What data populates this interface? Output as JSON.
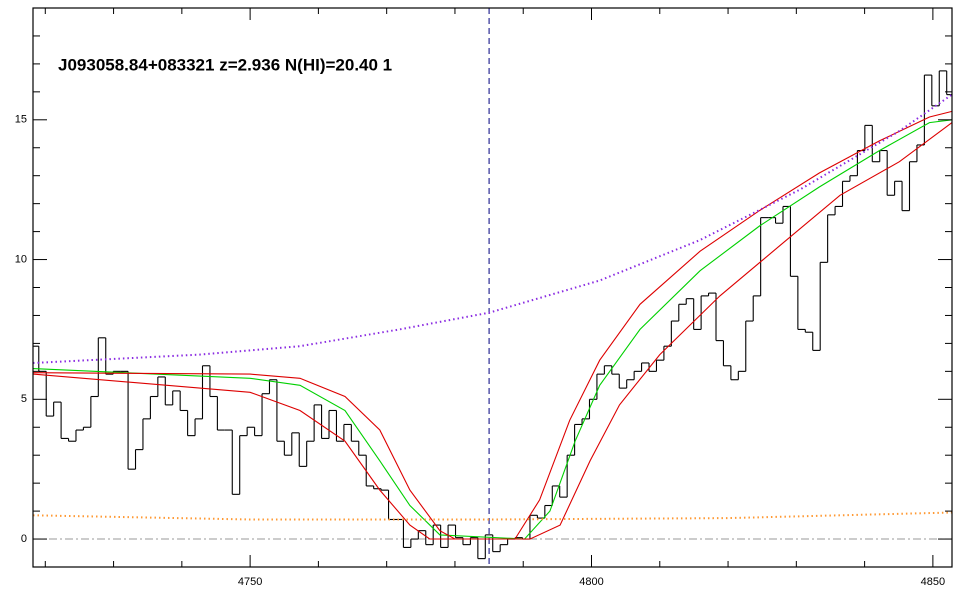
{
  "chart_data": {
    "type": "line",
    "title": "J093058.84+083321 z=2.936 N(HI)=20.40 1",
    "xlim": [
      4718.2,
      4852.8
    ],
    "ylim": [
      -1,
      19
    ],
    "xticks": [
      4750,
      4800,
      4850
    ],
    "xminorticks": [
      4720,
      4730,
      4740,
      4760,
      4770,
      4780,
      4790,
      4810,
      4820,
      4830,
      4840
    ],
    "yticks": [
      0,
      5,
      10,
      15
    ],
    "yminorticks": [
      -1,
      1,
      2,
      3,
      4,
      6,
      7,
      8,
      9,
      11,
      12,
      13,
      14,
      16,
      17,
      18
    ],
    "zero_line": 0,
    "vline": 4785,
    "series": [
      {
        "style": "step",
        "color": "#000000",
        "x": [
          4718.5,
          4719.59,
          4720.68,
          4721.77,
          4722.86,
          4723.95,
          4725.04,
          4726.13,
          4727.22,
          4728.31,
          4729.4,
          4730.49,
          4731.58,
          4732.67,
          4733.76,
          4734.85,
          4735.94,
          4737.03,
          4738.12,
          4739.21,
          4740.3,
          4741.39,
          4742.48,
          4743.57,
          4744.66,
          4745.75,
          4746.84,
          4747.93,
          4749.02,
          4750.11,
          4751.2,
          4752.29,
          4753.38,
          4754.47,
          4755.56,
          4756.65,
          4757.74,
          4758.83,
          4759.92,
          4761.01,
          4762.1,
          4763.19,
          4764.28,
          4765.37,
          4766.46,
          4767.55,
          4768.64,
          4769.73,
          4770.82,
          4771.91,
          4773,
          4774.09,
          4775.18,
          4776.27,
          4777.36,
          4778.45,
          4779.54,
          4780.63,
          4781.72,
          4782.81,
          4783.9,
          4784.99,
          4786.08,
          4787.17,
          4788.26,
          4789.35,
          4790.44,
          4791.53,
          4792.62,
          4793.71,
          4794.8,
          4795.89,
          4796.98,
          4798.07,
          4799.16,
          4800.25,
          4801.34,
          4802.43,
          4803.52,
          4804.61,
          4805.7,
          4806.79,
          4807.88,
          4808.97,
          4810.06,
          4811.15,
          4812.24,
          4813.33,
          4814.42,
          4815.51,
          4816.6,
          4817.69,
          4818.78,
          4819.87,
          4820.96,
          4822.05,
          4823.14,
          4824.23,
          4825.32,
          4826.41,
          4827.5,
          4828.59,
          4829.68,
          4830.77,
          4831.86,
          4832.95,
          4834.04,
          4835.13,
          4836.22,
          4837.31,
          4838.4,
          4839.49,
          4840.58,
          4841.67,
          4842.76,
          4843.85,
          4844.94,
          4846.03,
          4847.12,
          4848.21,
          4849.3,
          4850.39,
          4851.48,
          4852.57
        ],
        "values": [
          6.9,
          6.0,
          4.4,
          4.9,
          3.6,
          3.5,
          3.9,
          4.0,
          5.1,
          7.2,
          5.9,
          6.0,
          6.0,
          2.5,
          3.2,
          4.3,
          5.1,
          5.8,
          4.8,
          5.3,
          4.6,
          3.7,
          4.3,
          6.2,
          5.1,
          3.9,
          3.9,
          1.6,
          3.7,
          4.0,
          3.7,
          5.2,
          5.7,
          3.5,
          3.0,
          3.8,
          2.6,
          3.5,
          4.8,
          3.6,
          4.6,
          3.5,
          4.1,
          3.5,
          3.0,
          1.9,
          1.8,
          1.75,
          0.7,
          0.7,
          -0.3,
          0,
          0.3,
          -0.2,
          0.5,
          -0.3,
          0.5,
          0.05,
          -0.2,
          0.05,
          -0.7,
          0.15,
          -0.45,
          -0.2,
          0,
          0.05,
          0,
          0.85,
          0.75,
          1.2,
          1.9,
          1.5,
          3.0,
          4.1,
          4.3,
          5.0,
          5.9,
          6.2,
          5.9,
          5.4,
          5.7,
          6.0,
          6.3,
          6.0,
          6.4,
          6.9,
          7.8,
          8.4,
          8.6,
          7.5,
          8.7,
          8.8,
          7.1,
          6.2,
          5.7,
          6.0,
          7.8,
          8.7,
          11.5,
          11.5,
          11.3,
          11.9,
          9.4,
          7.5,
          7.4,
          6.75,
          9.9,
          11.6,
          11.9,
          12.8,
          13.0,
          13.9,
          14.8,
          13.5,
          13.9,
          12.3,
          12.8,
          11.75,
          13.5,
          14.1,
          16.6,
          15.5,
          16.75,
          15.9
        ]
      },
      {
        "style": "line",
        "color": "#00d000",
        "x": [
          4718.2,
          4750,
          4757.3,
          4763.9,
          4769,
          4773.4,
          4777.8,
          4790.2,
          4793.9,
          4797.6,
          4801.2,
          4807.1,
          4815.9,
          4824.6,
          4833.4,
          4842.2,
          4849.5,
          4852.8
        ],
        "values": [
          6.1,
          5.75,
          5.5,
          4.6,
          2.8,
          1.2,
          0.15,
          0,
          1.0,
          3.5,
          5.5,
          7.5,
          9.6,
          11.2,
          12.6,
          13.9,
          14.9,
          15.0
        ]
      },
      {
        "style": "line",
        "color": "#dd0000",
        "x": [
          4718.2,
          4750,
          4757.3,
          4763.9,
          4769,
          4773.4,
          4777.8,
          4780,
          4788.8,
          4792.4,
          4796.8,
          4801.2,
          4807.1,
          4815.9,
          4824.6,
          4833.4,
          4842.2,
          4849.5,
          4852.8
        ],
        "values": [
          5.95,
          5.9,
          5.75,
          5.1,
          3.9,
          1.75,
          0.3,
          0,
          0,
          1.4,
          4.25,
          6.4,
          8.4,
          10.3,
          11.75,
          13.1,
          14.25,
          15.1,
          15.3
        ]
      },
      {
        "style": "line",
        "color": "#dd0000",
        "x": [
          4718.2,
          4750,
          4757.3,
          4763.9,
          4769,
          4773.4,
          4776.3,
          4791,
          4795.4,
          4799.8,
          4804.1,
          4810,
          4818.8,
          4827.6,
          4836.4,
          4845.1,
          4852.8
        ],
        "values": [
          5.9,
          5.25,
          4.6,
          3.5,
          1.75,
          0.5,
          0,
          0,
          0.5,
          2.8,
          4.8,
          6.6,
          8.7,
          10.5,
          12.3,
          13.5,
          14.9
        ]
      },
      {
        "style": "dotted",
        "color": "#8a2be2",
        "x": [
          4718.2,
          4742.6,
          4757.3,
          4771.9,
          4785,
          4801.2,
          4815.9,
          4830.5,
          4845.1,
          4852.8
        ],
        "values": [
          6.3,
          6.6,
          6.9,
          7.5,
          8.1,
          9.25,
          10.7,
          12.5,
          14.6,
          15.9
        ]
      },
      {
        "style": "dotted",
        "color": "#ff9933",
        "x": [
          4718.2,
          4750,
          4785,
          4820,
          4852.8
        ],
        "values": [
          0.85,
          0.7,
          0.7,
          0.75,
          0.95
        ]
      }
    ]
  }
}
